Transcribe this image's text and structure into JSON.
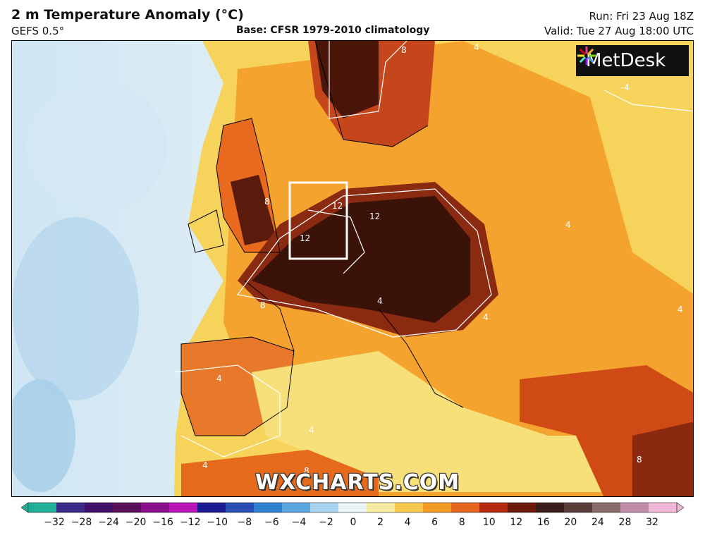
{
  "header": {
    "title": "2 m Temperature Anomaly (°C)",
    "model": "GEFS 0.5°",
    "base": "Base: CFSR 1979-2010 climatology",
    "run": "Run: Fri 23 Aug 18Z",
    "valid": "Valid: Tue 27 Aug 18:00 UTC"
  },
  "map": {
    "logo_text": "MetDesk",
    "watermark": "WXCHARTS.COM",
    "contour_labels": [
      "8",
      "4",
      "-4",
      "8",
      "12",
      "12",
      "12",
      "8",
      "4",
      "4",
      "4",
      "4",
      "4",
      "8",
      "4",
      "8",
      "4"
    ]
  },
  "colorbar": {
    "ticks": [
      "−32",
      "−28",
      "−24",
      "−20",
      "−16",
      "−12",
      "−10",
      "−8",
      "−6",
      "−4",
      "−2",
      "0",
      "2",
      "4",
      "6",
      "8",
      "10",
      "12",
      "16",
      "20",
      "24",
      "28",
      "32"
    ],
    "colors": [
      "#1fae96",
      "#3a2a8c",
      "#40106a",
      "#5a0f5a",
      "#8a0d8a",
      "#b815b8",
      "#1a1a90",
      "#2a4db5",
      "#2f7fcf",
      "#5aa6df",
      "#a9d3ec",
      "#e9f2f5",
      "#f6e9a2",
      "#f6c94d",
      "#f39a25",
      "#e2641a",
      "#b52a0e",
      "#6b1808",
      "#3a1a1a",
      "#5b3a3a",
      "#8a6a6a",
      "#c08ca8",
      "#f0b8d6"
    ]
  }
}
